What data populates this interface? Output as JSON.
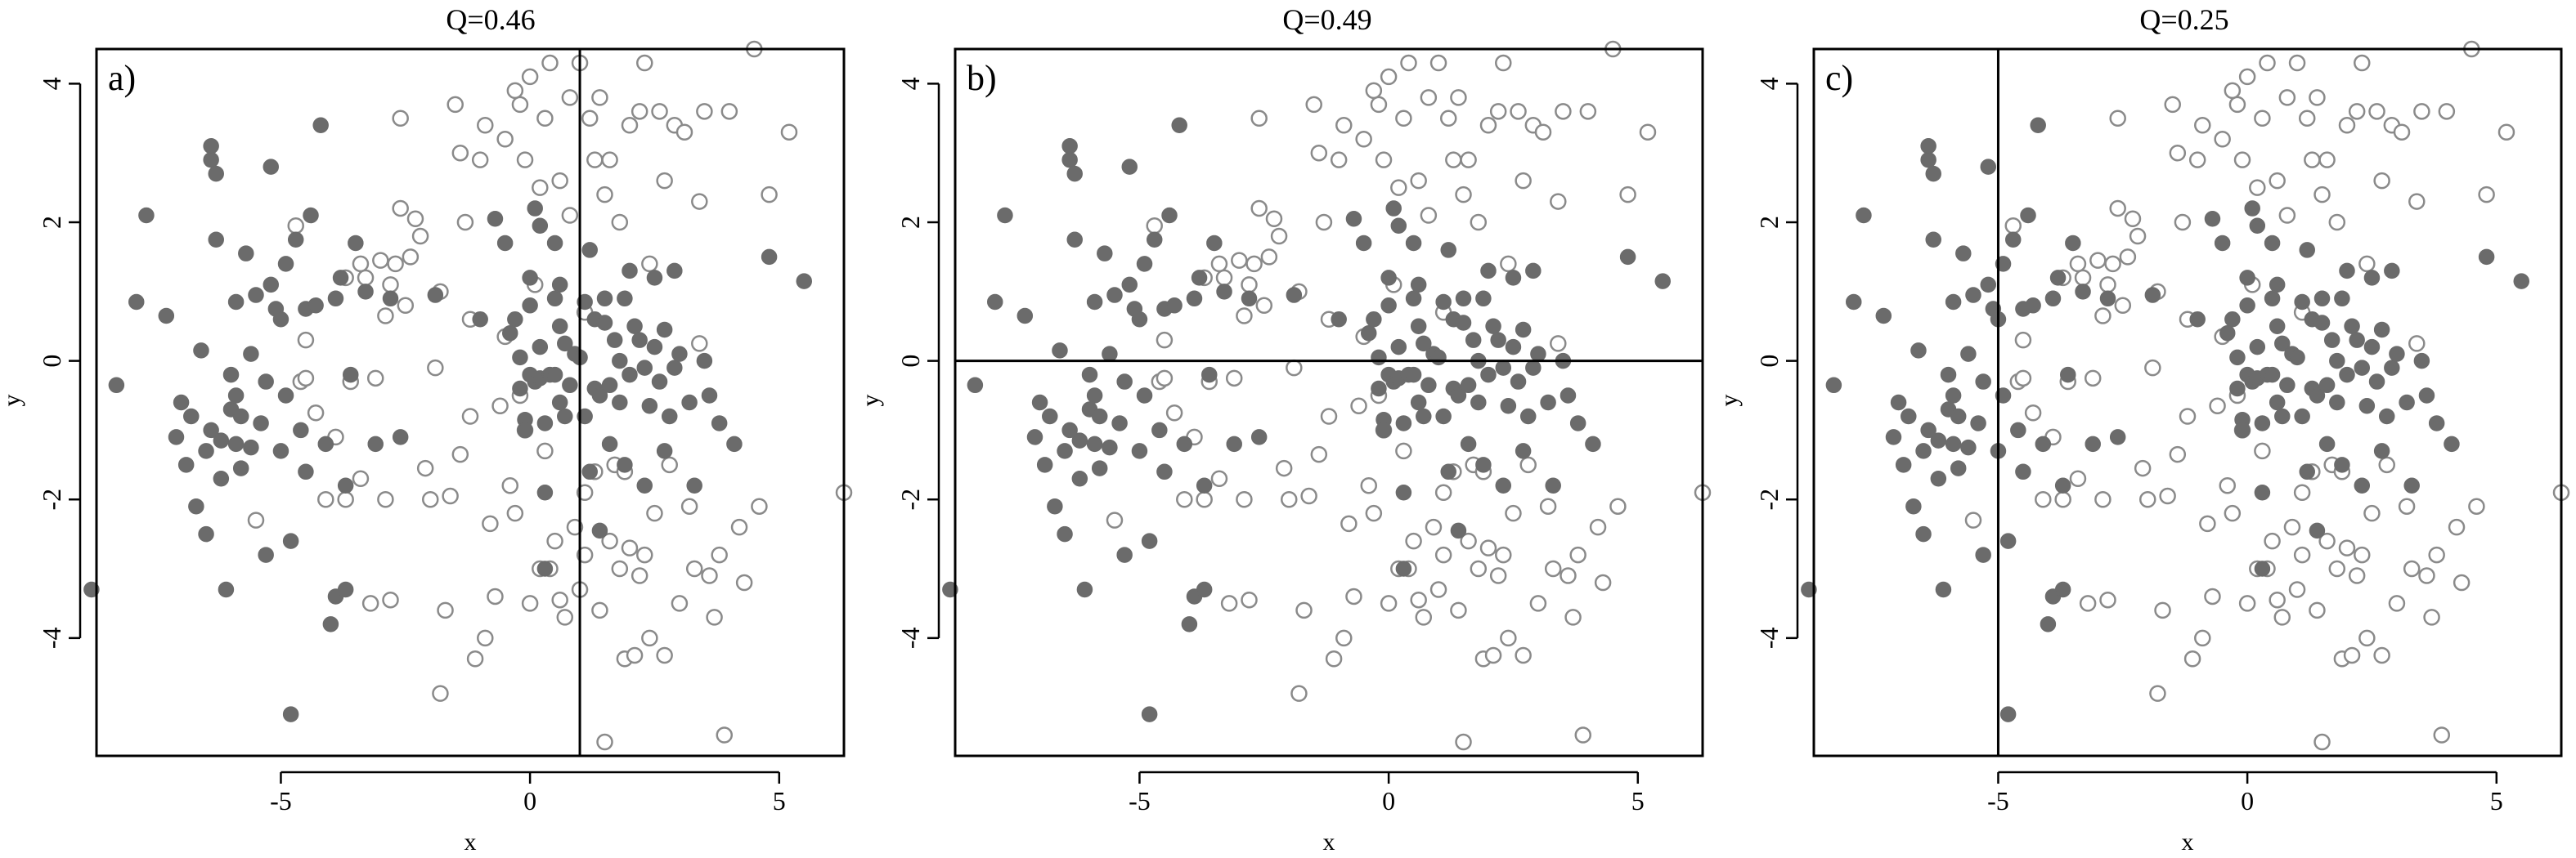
{
  "chart_data": {
    "type": "scatter",
    "description": "Three scatter panels of the same point set with a single split line each",
    "xlabel": "x",
    "ylabel": "y",
    "xlim": [
      -8.7,
      6.3
    ],
    "ylim": [
      -5.7,
      4.5
    ],
    "x_ticks": [
      -5,
      0,
      5
    ],
    "x_tick_labels": [
      "-5",
      "0",
      "5"
    ],
    "y_ticks": [
      -4,
      -2,
      0,
      2,
      4
    ],
    "y_tick_labels": [
      "-4",
      "-2",
      "0",
      "2",
      "4"
    ],
    "series_legend": [
      {
        "name": "filled",
        "style": "filled circle",
        "color": "#6b6b6b"
      },
      {
        "name": "open",
        "style": "open circle",
        "color": "#8a8a8a"
      }
    ],
    "panels": [
      {
        "label": "a)",
        "title": "Q=0.46",
        "split": {
          "axis": "x",
          "value": 1.0
        }
      },
      {
        "label": "b)",
        "title": "Q=0.49",
        "split": {
          "axis": "y",
          "value": 0.0
        }
      },
      {
        "label": "c)",
        "title": "Q=0.25",
        "split": {
          "axis": "x",
          "value": -5.0
        }
      }
    ],
    "filled_points": [
      [
        -8.8,
        -3.3
      ],
      [
        -8.3,
        -0.35
      ],
      [
        -7.9,
        0.85
      ],
      [
        -7.7,
        2.1
      ],
      [
        -7.3,
        0.65
      ],
      [
        -7.1,
        -1.1
      ],
      [
        -7.0,
        -0.6
      ],
      [
        -6.8,
        -0.8
      ],
      [
        -6.7,
        -2.1
      ],
      [
        -6.6,
        0.15
      ],
      [
        -6.5,
        -1.3
      ],
      [
        -6.5,
        -2.5
      ],
      [
        -6.4,
        3.1
      ],
      [
        -6.4,
        2.9
      ],
      [
        -6.3,
        2.7
      ],
      [
        -6.3,
        1.75
      ],
      [
        -6.2,
        -1.15
      ],
      [
        -6.2,
        -1.7
      ],
      [
        -6.1,
        -3.3
      ],
      [
        -6.0,
        -0.2
      ],
      [
        -6.0,
        -0.7
      ],
      [
        -5.9,
        -1.2
      ],
      [
        -5.9,
        0.85
      ],
      [
        -5.8,
        -0.8
      ],
      [
        -5.8,
        -1.55
      ],
      [
        -5.7,
        1.55
      ],
      [
        -5.6,
        -1.25
      ],
      [
        -5.5,
        0.95
      ],
      [
        -5.4,
        -0.9
      ],
      [
        -5.3,
        -2.8
      ],
      [
        -5.2,
        2.8
      ],
      [
        -5.2,
        1.1
      ],
      [
        -5.1,
        0.75
      ],
      [
        -5.0,
        0.6
      ],
      [
        -5.0,
        -1.3
      ],
      [
        -4.9,
        -0.5
      ],
      [
        -4.9,
        1.4
      ],
      [
        -4.8,
        -2.6
      ],
      [
        -4.8,
        -5.1
      ],
      [
        -4.7,
        1.75
      ],
      [
        -4.6,
        -1.0
      ],
      [
        -4.5,
        0.75
      ],
      [
        -4.5,
        -1.6
      ],
      [
        -4.4,
        2.1
      ],
      [
        -4.3,
        0.8
      ],
      [
        -4.2,
        3.4
      ],
      [
        -4.1,
        -1.2
      ],
      [
        -4.0,
        -3.8
      ],
      [
        -3.9,
        0.9
      ],
      [
        -3.9,
        -3.4
      ],
      [
        -3.8,
        1.2
      ],
      [
        -3.7,
        -3.3
      ],
      [
        -3.7,
        -1.8
      ],
      [
        -3.6,
        -0.2
      ],
      [
        -3.5,
        1.7
      ],
      [
        -3.3,
        1.0
      ],
      [
        -3.1,
        -1.2
      ],
      [
        -2.8,
        0.9
      ],
      [
        -2.6,
        -1.1
      ],
      [
        -1.9,
        0.95
      ],
      [
        -0.7,
        2.05
      ],
      [
        -0.5,
        1.7
      ],
      [
        -0.4,
        0.4
      ],
      [
        -0.3,
        0.6
      ],
      [
        -0.2,
        0.05
      ],
      [
        -0.2,
        -0.4
      ],
      [
        -0.1,
        -0.85
      ],
      [
        -0.1,
        -1.0
      ],
      [
        0.0,
        -0.2
      ],
      [
        0.0,
        1.2
      ],
      [
        0.0,
        0.8
      ],
      [
        0.1,
        2.2
      ],
      [
        0.1,
        -0.3
      ],
      [
        0.2,
        1.95
      ],
      [
        0.2,
        0.2
      ],
      [
        0.2,
        -0.25
      ],
      [
        0.3,
        -0.9
      ],
      [
        0.3,
        -1.9
      ],
      [
        0.3,
        -3.0
      ],
      [
        0.4,
        -0.2
      ],
      [
        0.5,
        1.7
      ],
      [
        0.5,
        0.9
      ],
      [
        0.5,
        -0.2
      ],
      [
        0.6,
        0.5
      ],
      [
        0.6,
        1.1
      ],
      [
        0.7,
        0.25
      ],
      [
        0.7,
        -0.8
      ],
      [
        0.8,
        -0.35
      ],
      [
        0.9,
        0.1
      ],
      [
        1.0,
        0.05
      ],
      [
        1.1,
        0.85
      ],
      [
        1.1,
        -0.8
      ],
      [
        1.2,
        1.6
      ],
      [
        1.2,
        -1.6
      ],
      [
        1.3,
        0.6
      ],
      [
        1.3,
        -0.4
      ],
      [
        1.4,
        -0.5
      ],
      [
        1.4,
        -2.45
      ],
      [
        1.5,
        0.55
      ],
      [
        1.5,
        0.9
      ],
      [
        1.6,
        -0.35
      ],
      [
        1.6,
        -1.2
      ],
      [
        1.7,
        0.3
      ],
      [
        1.8,
        0.0
      ],
      [
        1.8,
        -0.6
      ],
      [
        1.9,
        -1.5
      ],
      [
        2.0,
        1.3
      ],
      [
        2.0,
        -0.2
      ],
      [
        2.1,
        0.5
      ],
      [
        2.2,
        0.3
      ],
      [
        2.3,
        -0.1
      ],
      [
        2.3,
        -1.8
      ],
      [
        2.4,
        -0.65
      ],
      [
        2.5,
        1.2
      ],
      [
        2.5,
        0.2
      ],
      [
        2.6,
        -0.3
      ],
      [
        2.7,
        0.45
      ],
      [
        2.7,
        -1.3
      ],
      [
        2.8,
        -0.8
      ],
      [
        2.9,
        1.3
      ],
      [
        2.9,
        -0.1
      ],
      [
        3.0,
        0.1
      ],
      [
        3.2,
        -0.6
      ],
      [
        3.3,
        -1.8
      ],
      [
        3.5,
        0.0
      ],
      [
        3.6,
        -0.5
      ],
      [
        3.8,
        -0.9
      ],
      [
        4.1,
        -1.2
      ],
      [
        4.8,
        1.5
      ],
      [
        5.5,
        1.15
      ],
      [
        -6.9,
        -1.5
      ],
      [
        -6.4,
        -1.0
      ],
      [
        -5.6,
        0.1
      ],
      [
        -5.9,
        -0.5
      ],
      [
        -5.3,
        -0.3
      ],
      [
        -1.0,
        0.6
      ],
      [
        0.6,
        -0.6
      ],
      [
        1.9,
        0.9
      ]
    ],
    "open_points": [
      [
        -5.5,
        -2.3
      ],
      [
        -4.7,
        1.95
      ],
      [
        -4.6,
        -0.3
      ],
      [
        -4.5,
        -0.25
      ],
      [
        -4.3,
        -0.75
      ],
      [
        -3.9,
        -1.1
      ],
      [
        -3.7,
        -2.0
      ],
      [
        -3.6,
        -0.3
      ],
      [
        -3.4,
        1.4
      ],
      [
        -3.4,
        -1.7
      ],
      [
        -3.3,
        1.2
      ],
      [
        -3.2,
        -3.5
      ],
      [
        -3.1,
        -0.25
      ],
      [
        -3.0,
        1.45
      ],
      [
        -2.9,
        -2.0
      ],
      [
        -2.9,
        0.65
      ],
      [
        -2.8,
        -3.45
      ],
      [
        -2.8,
        1.1
      ],
      [
        -2.7,
        1.4
      ],
      [
        -2.6,
        3.5
      ],
      [
        -2.5,
        0.8
      ],
      [
        -2.4,
        1.5
      ],
      [
        -2.2,
        1.8
      ],
      [
        -2.1,
        -1.55
      ],
      [
        -2.0,
        -2.0
      ],
      [
        -1.9,
        -0.1
      ],
      [
        -1.8,
        1.0
      ],
      [
        -1.7,
        -3.6
      ],
      [
        -1.6,
        -1.95
      ],
      [
        -1.5,
        3.7
      ],
      [
        -1.4,
        -1.35
      ],
      [
        -1.3,
        2.0
      ],
      [
        -1.2,
        -0.8
      ],
      [
        -1.2,
        0.6
      ],
      [
        -1.1,
        -4.3
      ],
      [
        -1.0,
        2.9
      ],
      [
        -0.9,
        -4.0
      ],
      [
        -0.8,
        -2.35
      ],
      [
        -0.7,
        -3.4
      ],
      [
        -0.6,
        -0.65
      ],
      [
        -0.5,
        0.35
      ],
      [
        -0.5,
        3.2
      ],
      [
        -0.4,
        -1.8
      ],
      [
        -0.3,
        -2.2
      ],
      [
        -0.3,
        3.9
      ],
      [
        -0.2,
        -0.5
      ],
      [
        -0.1,
        -1.0
      ],
      [
        -0.1,
        2.9
      ],
      [
        0.0,
        -3.5
      ],
      [
        0.0,
        4.1
      ],
      [
        0.1,
        1.1
      ],
      [
        0.2,
        -3.0
      ],
      [
        0.2,
        2.5
      ],
      [
        0.3,
        3.5
      ],
      [
        0.3,
        -1.3
      ],
      [
        0.4,
        -3.0
      ],
      [
        0.4,
        4.3
      ],
      [
        0.5,
        -2.6
      ],
      [
        0.6,
        -3.45
      ],
      [
        0.6,
        2.6
      ],
      [
        0.7,
        -3.7
      ],
      [
        0.8,
        2.1
      ],
      [
        0.8,
        3.8
      ],
      [
        0.9,
        -2.4
      ],
      [
        1.0,
        -3.3
      ],
      [
        1.0,
        4.3
      ],
      [
        1.1,
        0.7
      ],
      [
        1.1,
        -2.8
      ],
      [
        1.2,
        3.5
      ],
      [
        1.3,
        2.9
      ],
      [
        1.3,
        -1.6
      ],
      [
        1.4,
        -3.6
      ],
      [
        1.4,
        3.8
      ],
      [
        1.5,
        2.4
      ],
      [
        1.5,
        -5.5
      ],
      [
        1.6,
        2.9
      ],
      [
        1.6,
        -2.6
      ],
      [
        1.7,
        -1.5
      ],
      [
        1.8,
        2.0
      ],
      [
        1.8,
        -3.0
      ],
      [
        1.9,
        -4.3
      ],
      [
        2.0,
        3.4
      ],
      [
        2.0,
        -2.7
      ],
      [
        2.1,
        -4.25
      ],
      [
        2.2,
        3.6
      ],
      [
        2.2,
        -3.1
      ],
      [
        2.3,
        -2.8
      ],
      [
        2.3,
        4.3
      ],
      [
        2.4,
        1.4
      ],
      [
        2.4,
        -4.0
      ],
      [
        2.5,
        -2.2
      ],
      [
        2.6,
        3.6
      ],
      [
        2.7,
        2.6
      ],
      [
        2.7,
        -4.25
      ],
      [
        2.8,
        -1.5
      ],
      [
        2.9,
        3.4
      ],
      [
        3.0,
        -3.5
      ],
      [
        3.1,
        3.3
      ],
      [
        3.2,
        -2.1
      ],
      [
        3.3,
        -3.0
      ],
      [
        3.4,
        2.3
      ],
      [
        3.5,
        3.6
      ],
      [
        3.6,
        -3.1
      ],
      [
        3.7,
        -3.7
      ],
      [
        3.8,
        -2.8
      ],
      [
        3.9,
        -5.4
      ],
      [
        4.0,
        3.6
      ],
      [
        4.2,
        -2.4
      ],
      [
        4.3,
        -3.2
      ],
      [
        4.5,
        4.5
      ],
      [
        4.6,
        -2.1
      ],
      [
        4.8,
        2.4
      ],
      [
        5.2,
        3.3
      ],
      [
        6.3,
        -1.9
      ],
      [
        -2.3,
        2.05
      ],
      [
        -1.4,
        3.0
      ],
      [
        -0.9,
        3.4
      ],
      [
        -3.7,
        1.2
      ],
      [
        -2.6,
        2.2
      ],
      [
        -0.2,
        3.7
      ],
      [
        1.9,
        -1.6
      ],
      [
        3.4,
        0.25
      ],
      [
        -4.1,
        -2.0
      ],
      [
        -1.8,
        -4.8
      ],
      [
        -4.5,
        0.3
      ],
      [
        1.1,
        -1.9
      ]
    ]
  }
}
